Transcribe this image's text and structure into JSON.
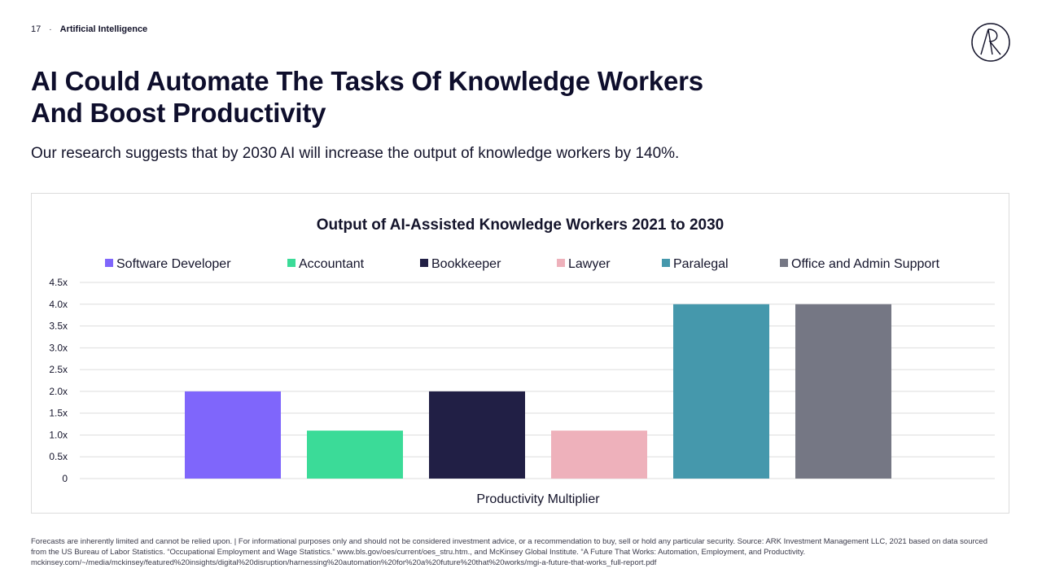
{
  "header": {
    "page_number": "17",
    "separator": "·",
    "section": "Artificial Intelligence"
  },
  "title": {
    "line1": "AI Could Automate The Tasks Of Knowledge Workers",
    "line2": "And Boost Productivity"
  },
  "subtitle": "Our research suggests that by 2030 AI will increase the output of knowledge workers by 140%.",
  "chart_data": {
    "type": "bar",
    "title": "Output of AI-Assisted Knowledge Workers 2021 to 2030",
    "xlabel": "Productivity Multiplier",
    "ylabel": "",
    "ylim": [
      0,
      4.5
    ],
    "yticks": [
      0,
      0.5,
      1.0,
      1.5,
      2.0,
      2.5,
      3.0,
      3.5,
      4.0,
      4.5
    ],
    "ytick_labels": [
      "0",
      "0.5x",
      "1.0x",
      "1.5x",
      "2.0x",
      "2.5x",
      "3.0x",
      "3.5x",
      "4.0x",
      "4.5x"
    ],
    "grid": true,
    "legend_position": "top",
    "series": [
      {
        "name": "Software Developer",
        "value": 2.0,
        "color": "#7f66fb"
      },
      {
        "name": "Accountant",
        "value": 1.1,
        "color": "#3bdb98"
      },
      {
        "name": "Bookkeeper",
        "value": 2.0,
        "color": "#211f45"
      },
      {
        "name": "Lawyer",
        "value": 1.1,
        "color": "#eeb1bb"
      },
      {
        "name": "Paralegal",
        "value": 4.0,
        "color": "#4598ac"
      },
      {
        "name": "Office and Admin Support",
        "value": 4.0,
        "color": "#757784"
      }
    ]
  },
  "footnote": "Forecasts are inherently limited and cannot be relied upon. | For informational purposes only and should not be considered investment advice, or a recommendation to buy, sell or hold any particular security. Source: ARK Investment Management LLC, 2021 based on data sourced from the US Bureau of Labor Statistics. “Occupational Employment and Wage Statistics.” www.bls.gov/oes/current/oes_stru.htm., and McKinsey Global Institute. “A Future That Works: Automation, Employment, and Productivity. mckinsey.com/~/media/mckinsey/featured%20insights/digital%20disruption/harnessing%20automation%20for%20a%20future%20that%20works/mgi-a-future-that-works_full-report.pdf"
}
